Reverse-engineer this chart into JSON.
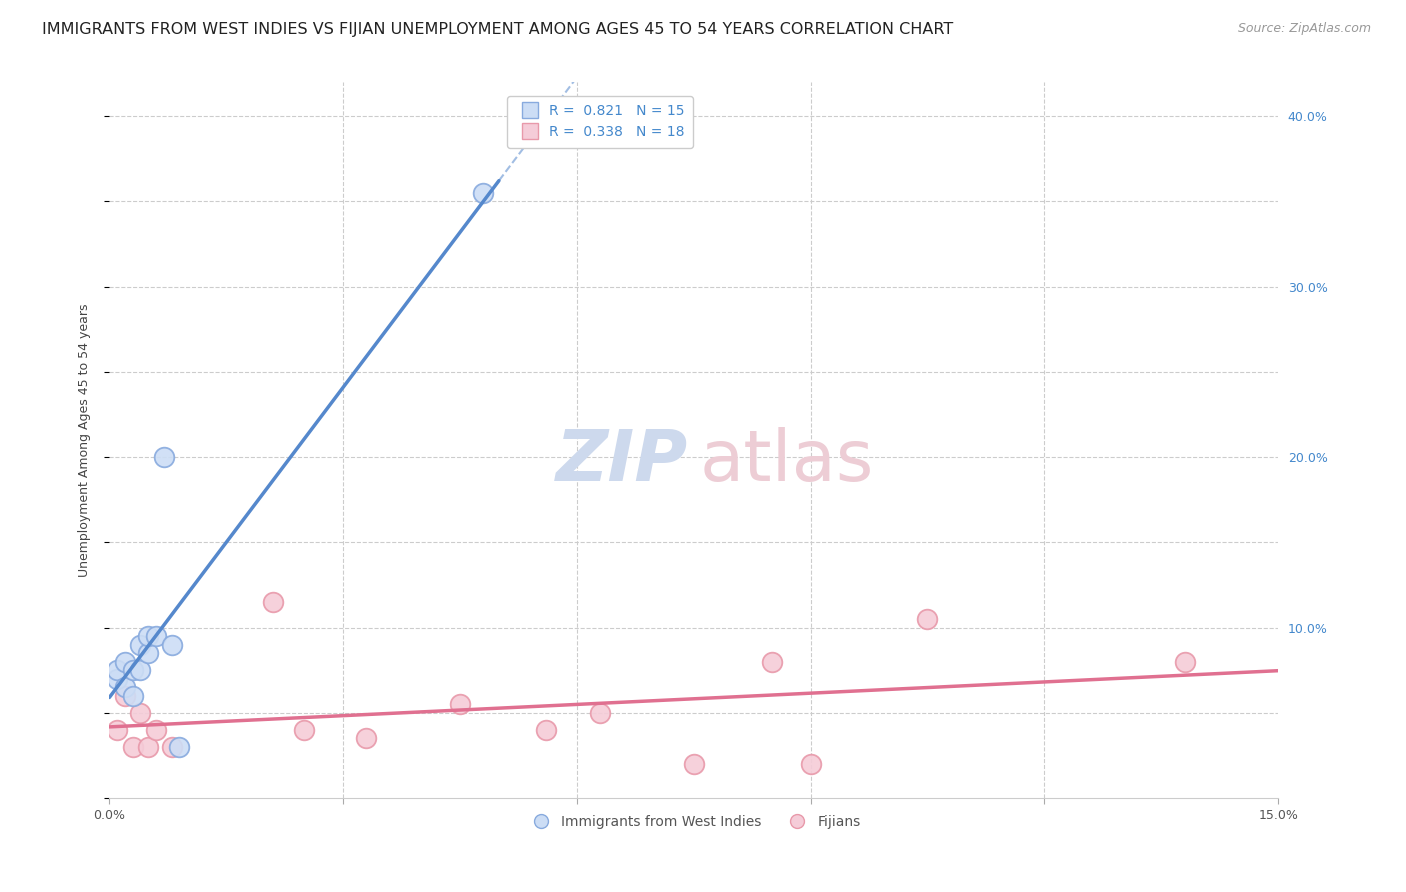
{
  "title": "IMMIGRANTS FROM WEST INDIES VS FIJIAN UNEMPLOYMENT AMONG AGES 45 TO 54 YEARS CORRELATION CHART",
  "source": "Source: ZipAtlas.com",
  "ylabel": "Unemployment Among Ages 45 to 54 years",
  "xlim": [
    0.0,
    0.15
  ],
  "ylim": [
    0.0,
    42.0
  ],
  "xtick_vals": [
    0.0,
    0.03,
    0.06,
    0.09,
    0.12,
    0.15
  ],
  "xtick_labels": [
    "0.0%",
    "",
    "",
    "",
    "",
    "15.0%"
  ],
  "ytick_vals": [
    0.0,
    5.0,
    10.0,
    15.0,
    20.0,
    25.0,
    30.0,
    35.0,
    40.0
  ],
  "ytick_right_labels": [
    "",
    "",
    "10.0%",
    "",
    "20.0%",
    "",
    "30.0%",
    "",
    "40.0%"
  ],
  "grid_color": "#cccccc",
  "background_color": "#ffffff",
  "west_indies_line_color": "#5588cc",
  "fijian_line_color": "#e07090",
  "west_indies_fill_color": "#ccddf5",
  "fijian_fill_color": "#f5ccd8",
  "west_indies_edge_color": "#88aade",
  "fijian_edge_color": "#e899aa",
  "legend_R_wi": "0.821",
  "legend_N_wi": "15",
  "legend_R_fi": "0.338",
  "legend_N_fi": "18",
  "wi_x": [
    0.001,
    0.001,
    0.002,
    0.002,
    0.003,
    0.003,
    0.004,
    0.004,
    0.005,
    0.005,
    0.006,
    0.007,
    0.008,
    0.009,
    0.048
  ],
  "wi_y": [
    7.0,
    7.5,
    6.5,
    8.0,
    7.5,
    6.0,
    9.0,
    7.5,
    8.5,
    9.5,
    9.5,
    20.0,
    9.0,
    3.0,
    35.5
  ],
  "fi_x": [
    0.001,
    0.002,
    0.003,
    0.004,
    0.005,
    0.006,
    0.008,
    0.021,
    0.025,
    0.033,
    0.045,
    0.056,
    0.063,
    0.075,
    0.085,
    0.09,
    0.105,
    0.138
  ],
  "fi_y": [
    4.0,
    6.0,
    3.0,
    5.0,
    3.0,
    4.0,
    3.0,
    11.5,
    4.0,
    3.5,
    5.5,
    4.0,
    5.0,
    2.0,
    8.0,
    2.0,
    10.5,
    8.0
  ],
  "title_fontsize": 11.5,
  "source_fontsize": 9,
  "tick_fontsize": 9,
  "legend_fontsize": 10,
  "ylabel_fontsize": 9,
  "watermark_fontsize_zip": 52,
  "watermark_fontsize_atlas": 52,
  "watermark_color_zip": "#cdd9ed",
  "watermark_color_atlas": "#edcdd5",
  "marker_size": 200
}
